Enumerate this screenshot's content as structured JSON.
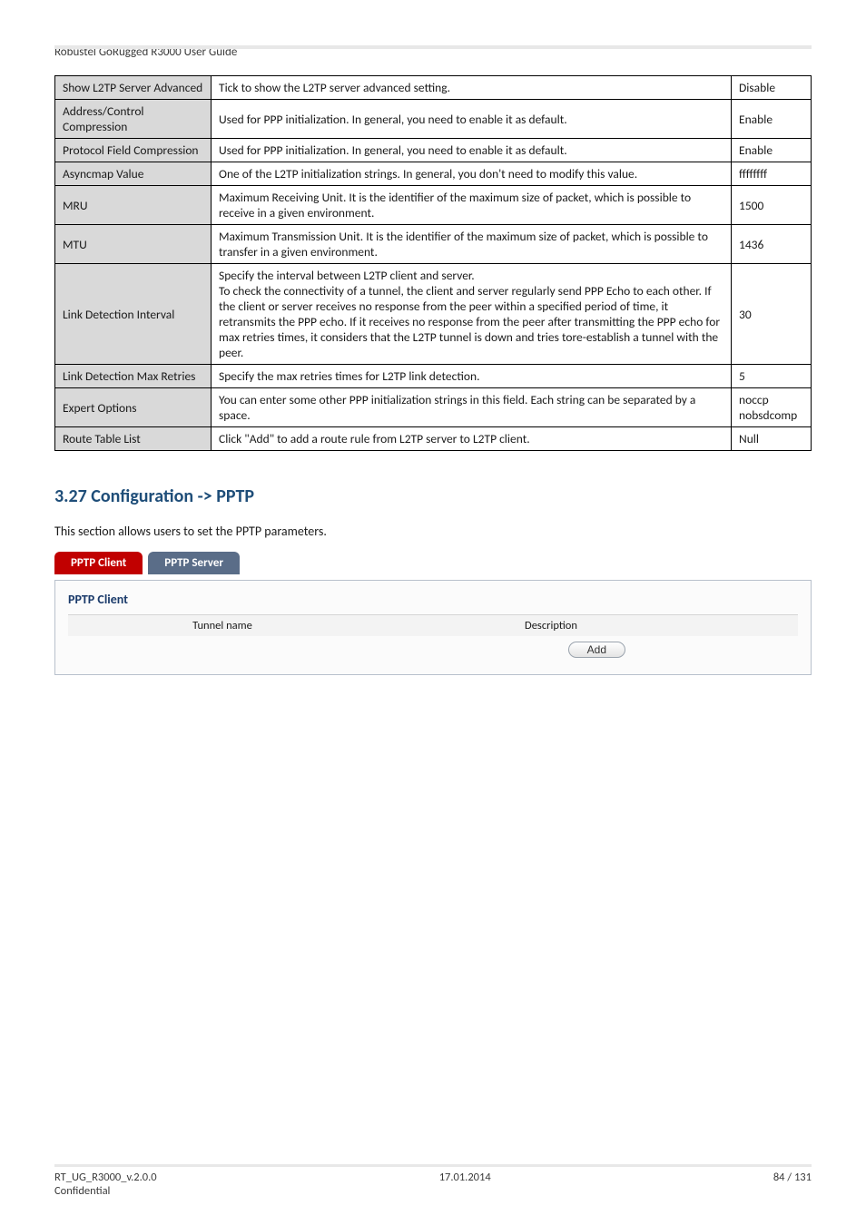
{
  "doc_header": "Robustel GoRugged R3000 User Guide",
  "table": {
    "rows": [
      {
        "c1": "Show L2TP Server Advanced",
        "c2": "Tick to show the L2TP server advanced setting.",
        "c3": "Disable"
      },
      {
        "c1": "Address/Control Compression",
        "c2": "Used for PPP initialization. In general, you need to enable it as default.",
        "c3": "Enable"
      },
      {
        "c1": "Protocol Field Compression",
        "c2": "Used for PPP initialization. In general, you need to enable it as default.",
        "c3": "Enable"
      },
      {
        "c1": "Asyncmap Value",
        "c2": "One of the L2TP initialization strings. In general, you don't need to modify this value.",
        "c3": "ffffffff"
      },
      {
        "c1": "MRU",
        "c2": "Maximum Receiving Unit. It is the identifier of the maximum size of packet, which is possible to receive in a given environment.",
        "c3": "1500"
      },
      {
        "c1": "MTU",
        "c2": "Maximum Transmission Unit. It is the identifier of the maximum size of packet, which is possible to transfer in a given environment.",
        "c3": "1436"
      },
      {
        "c1": "Link Detection Interval",
        "c2": "Specify the interval between L2TP client and server.\nTo check the connectivity of a tunnel, the client and server regularly send PPP Echo to each other. If the client or server receives no response from the peer within a specified period of time, it retransmits the PPP echo. If it receives no response from the peer after transmitting the PPP echo for max retries times, it considers that the L2TP tunnel is down and tries tore-establish a tunnel with the peer.",
        "c3": "30"
      },
      {
        "c1": "Link Detection Max Retries",
        "c2": "Specify the max retries times for L2TP link detection.",
        "c3": "5"
      },
      {
        "c1": "Expert Options",
        "c2": "You can enter some other PPP initialization strings in this field. Each string can be separated by a space.",
        "c3": "noccp nobsdcomp"
      },
      {
        "c1": "Route Table List",
        "c2": "Click \"Add\" to add a route rule from L2TP server to L2TP client.",
        "c3": "Null"
      }
    ]
  },
  "section": {
    "heading": "3.27  Configuration -> PPTP",
    "intro": "This section allows users to set the PPTP parameters."
  },
  "tabs": {
    "active": "PPTP Client",
    "inactive": "PPTP Server"
  },
  "pptp": {
    "title": "PPTP Client",
    "col_tunnel": "Tunnel name",
    "col_desc": "Description",
    "add_label": "Add"
  },
  "footer": {
    "left1": "RT_UG_R3000_v.2.0.0",
    "left2": "Confidential",
    "center": "17.01.2014",
    "right": "84 / 131"
  }
}
